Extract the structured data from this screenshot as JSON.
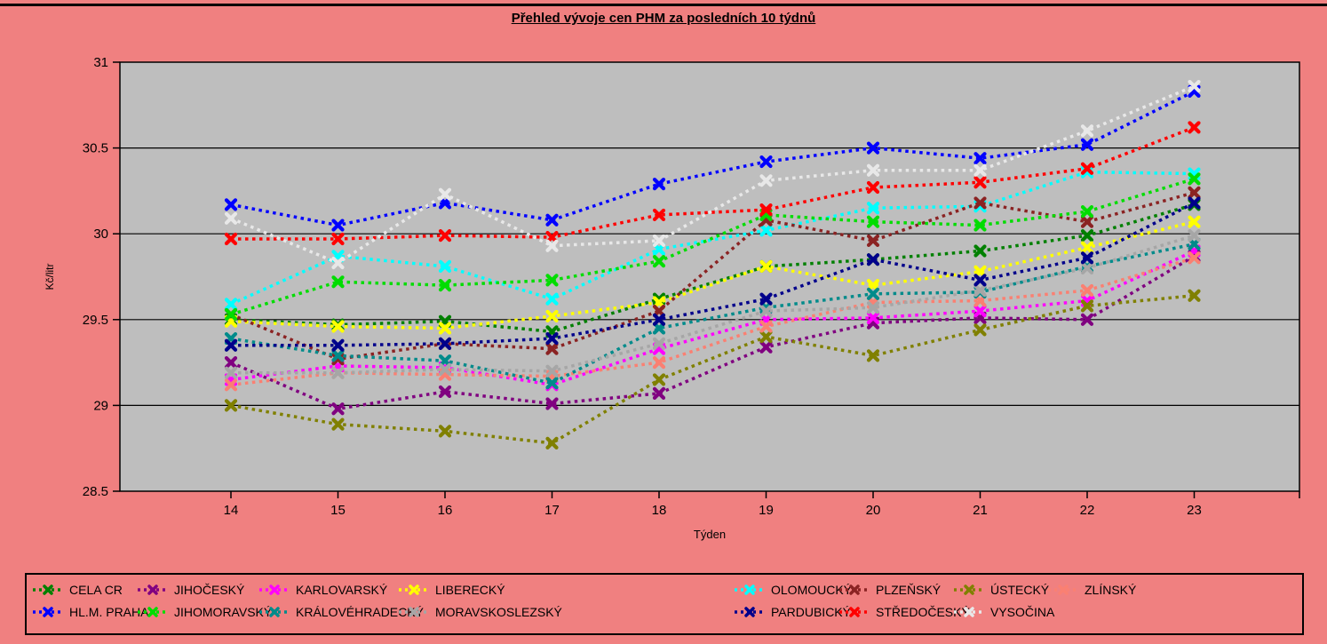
{
  "chart_data": {
    "type": "line",
    "title": "Přehled vývoje cen PHM za posledních 10 týdnů",
    "xlabel": "Týden",
    "ylabel": "Kč/litr",
    "x": [
      14,
      15,
      16,
      17,
      18,
      19,
      20,
      21,
      22,
      23
    ],
    "ylim": [
      28.5,
      31
    ],
    "ytick_step": 0.5,
    "y_tick_labels": [
      "28.5",
      "29",
      "29.5",
      "30",
      "30.5",
      "31"
    ],
    "grid": "horizontal",
    "line_style": "dotted",
    "marker": "x",
    "legend_position": "bottom",
    "colors": {
      "page_bg": "#f08080",
      "plot_bg": "#bebebe",
      "axis": "#000000"
    },
    "series": [
      {
        "name": "CELA CR",
        "color": "#008000",
        "values": [
          29.5,
          29.47,
          29.49,
          29.43,
          29.62,
          29.81,
          29.85,
          29.9,
          29.99,
          30.17
        ]
      },
      {
        "name": "JIHOČESKÝ",
        "color": "#800080",
        "values": [
          29.25,
          28.98,
          29.08,
          29.01,
          29.07,
          29.34,
          29.48,
          29.51,
          29.5,
          29.87
        ]
      },
      {
        "name": "KARLOVARSKÝ",
        "color": "#ff00ff",
        "values": [
          29.15,
          29.23,
          29.22,
          29.12,
          29.33,
          29.5,
          29.51,
          29.55,
          29.61,
          29.9
        ]
      },
      {
        "name": "LIBERECKÝ",
        "color": "#ffff00",
        "values": [
          29.49,
          29.46,
          29.45,
          29.52,
          29.6,
          29.81,
          29.7,
          29.78,
          29.92,
          30.07
        ]
      },
      {
        "name": "OLOMOUCKÝ",
        "color": "#00ffff",
        "values": [
          29.59,
          29.87,
          29.81,
          29.62,
          29.91,
          30.02,
          30.15,
          30.16,
          30.36,
          30.35
        ]
      },
      {
        "name": "PLZEŇSKÝ",
        "color": "#8b2323",
        "values": [
          29.53,
          29.27,
          29.36,
          29.33,
          29.55,
          30.08,
          29.96,
          30.18,
          30.07,
          30.24
        ]
      },
      {
        "name": "ÚSTECKÝ",
        "color": "#808000",
        "values": [
          29.0,
          28.89,
          28.85,
          28.78,
          29.15,
          29.4,
          29.29,
          29.44,
          29.58,
          29.64
        ]
      },
      {
        "name": "ZLÍNSKÝ",
        "color": "#fa8072",
        "values": [
          29.12,
          29.19,
          29.18,
          29.17,
          29.25,
          29.46,
          29.6,
          29.61,
          29.67,
          29.86
        ]
      },
      {
        "name": "HL.M. PRAHA",
        "color": "#0000ff",
        "values": [
          30.17,
          30.05,
          30.18,
          30.08,
          30.29,
          30.42,
          30.5,
          30.44,
          30.52,
          30.83
        ]
      },
      {
        "name": "JIHOMORAVSKÝ",
        "color": "#00dd00",
        "values": [
          29.53,
          29.72,
          29.7,
          29.73,
          29.84,
          30.11,
          30.07,
          30.05,
          30.13,
          30.32
        ]
      },
      {
        "name": "KRÁLOVÉHRADECKÝ",
        "color": "#008b8b",
        "values": [
          29.39,
          29.29,
          29.26,
          29.13,
          29.45,
          29.57,
          29.65,
          29.66,
          29.81,
          29.94
        ]
      },
      {
        "name": "MORAVSKOSLEZSKÝ",
        "color": "#a6a6a6",
        "values": [
          29.19,
          29.19,
          29.21,
          29.2,
          29.36,
          29.55,
          29.57,
          29.67,
          29.8,
          29.99
        ]
      },
      {
        "name": "PARDUBICKÝ",
        "color": "#00008b",
        "values": [
          29.35,
          29.35,
          29.36,
          29.39,
          29.5,
          29.62,
          29.85,
          29.73,
          29.86,
          30.18
        ]
      },
      {
        "name": "STŘEDOČESKÝ",
        "color": "#ff0000",
        "values": [
          29.97,
          29.97,
          29.99,
          29.98,
          30.11,
          30.14,
          30.27,
          30.3,
          30.38,
          30.62
        ]
      },
      {
        "name": "VYSOČINA",
        "color": "#e8e8e8",
        "values": [
          30.09,
          29.83,
          30.23,
          29.93,
          29.96,
          30.31,
          30.37,
          30.37,
          30.6,
          30.86
        ]
      }
    ]
  }
}
